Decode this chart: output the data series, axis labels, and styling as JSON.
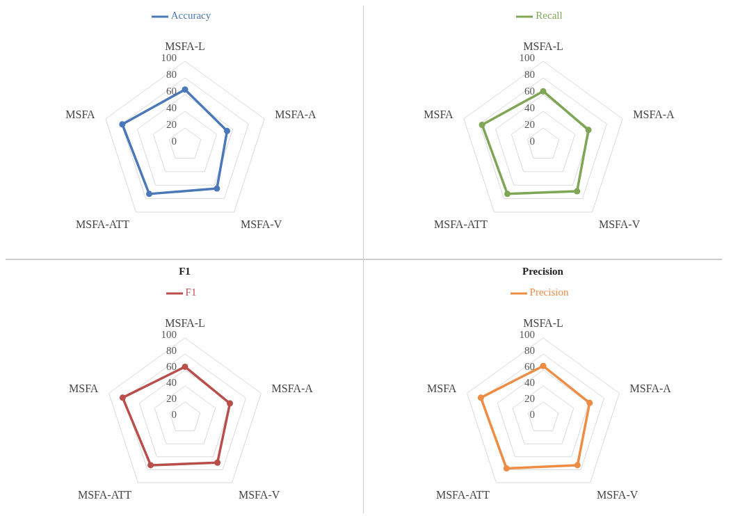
{
  "chart_data": [
    {
      "type": "radar",
      "categories": [
        "MSFA-L",
        "MSFA-A",
        "MSFA-V",
        "MSFA-ATT",
        "MSFA"
      ],
      "series": [
        {
          "name": "Accuracy",
          "color": "#4a78b8",
          "values": [
            66,
            53,
            65,
            73,
            79
          ]
        }
      ],
      "ylim": [
        0,
        100
      ],
      "yticks": [
        0,
        20,
        40,
        60,
        80,
        100
      ],
      "grid": true,
      "legend": "top",
      "marker": "circle"
    },
    {
      "type": "radar",
      "categories": [
        "MSFA-L",
        "MSFA-A",
        "MSFA-V",
        "MSFA-ATT",
        "MSFA"
      ],
      "series": [
        {
          "name": "Recall",
          "color": "#7ea655",
          "values": [
            64,
            57,
            69,
            73,
            77
          ]
        }
      ],
      "ylim": [
        0,
        100
      ],
      "yticks": [
        0,
        20,
        40,
        60,
        80,
        100
      ],
      "grid": true,
      "legend": "top",
      "marker": "circle"
    },
    {
      "type": "radar",
      "title": "F1",
      "categories": [
        "MSFA-L",
        "MSFA-A",
        "MSFA-V",
        "MSFA-ATT",
        "MSFA"
      ],
      "series": [
        {
          "name": "F1",
          "color": "#b84f4c",
          "values": [
            64,
            59,
            69,
            73,
            82
          ]
        }
      ],
      "ylim": [
        0,
        100
      ],
      "yticks": [
        0,
        20,
        40,
        60,
        80,
        100
      ],
      "grid": true,
      "legend": "top",
      "marker": "circle"
    },
    {
      "type": "radar",
      "title": "Precision",
      "categories": [
        "MSFA-L",
        "MSFA-A",
        "MSFA-V",
        "MSFA-ATT",
        "MSFA"
      ],
      "series": [
        {
          "name": "Precision",
          "color": "#ee8c44",
          "values": [
            65,
            61,
            73,
            78,
            82
          ]
        }
      ],
      "ylim": [
        0,
        100
      ],
      "yticks": [
        0,
        20,
        40,
        60,
        80,
        100
      ],
      "grid": true,
      "legend": "top",
      "marker": "circle"
    }
  ]
}
